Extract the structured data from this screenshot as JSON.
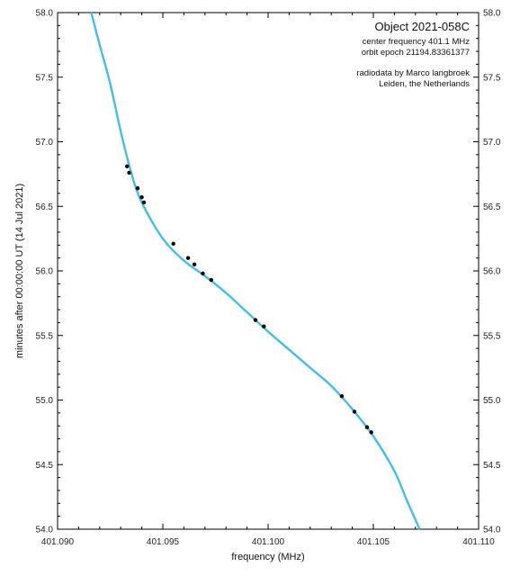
{
  "chart_data": {
    "type": "scatter",
    "title": "Object 2021-058C",
    "annotations": [
      "center frequency 401.1 MHz",
      "orbit epoch  21194.83361377",
      "radiodata by Marco langbroek",
      "Leiden, the Netherlands"
    ],
    "xlabel": "frequency (MHz)",
    "ylabel": "minutes after 00:00:00 UT (14 Jul 2021)",
    "xlim": [
      401.09,
      401.11
    ],
    "ylim": [
      54.0,
      58.0
    ],
    "x_ticks": [
      "401.090",
      "401.095",
      "401.100",
      "401.105",
      "401.110"
    ],
    "y_ticks": [
      "54.0",
      "54.5",
      "55.0",
      "55.5",
      "56.0",
      "56.5",
      "57.0",
      "57.5",
      "58.0"
    ],
    "grid": false,
    "series": [
      {
        "kind": "line",
        "color": "#3fbfea",
        "points": [
          [
            401.0916,
            58.0
          ],
          [
            401.092,
            57.75
          ],
          [
            401.0925,
            57.45
          ],
          [
            401.093,
            57.08
          ],
          [
            401.0935,
            56.76
          ],
          [
            401.094,
            56.53
          ],
          [
            401.095,
            56.25
          ],
          [
            401.096,
            56.08
          ],
          [
            401.097,
            55.96
          ],
          [
            401.098,
            55.83
          ],
          [
            401.099,
            55.68
          ],
          [
            401.1,
            55.53
          ],
          [
            401.101,
            55.39
          ],
          [
            401.102,
            55.25
          ],
          [
            401.103,
            55.11
          ],
          [
            401.104,
            54.93
          ],
          [
            401.105,
            54.72
          ],
          [
            401.106,
            54.45
          ],
          [
            401.1066,
            54.22
          ],
          [
            401.1072,
            54.0
          ]
        ]
      },
      {
        "kind": "points",
        "color": "#000000",
        "points": [
          [
            401.0933,
            56.81
          ],
          [
            401.0934,
            56.76
          ],
          [
            401.0938,
            56.64
          ],
          [
            401.094,
            56.57
          ],
          [
            401.0941,
            56.53
          ],
          [
            401.0955,
            56.21
          ],
          [
            401.0962,
            56.1
          ],
          [
            401.0965,
            56.05
          ],
          [
            401.0969,
            55.98
          ],
          [
            401.0973,
            55.93
          ],
          [
            401.0994,
            55.62
          ],
          [
            401.0998,
            55.57
          ],
          [
            401.1035,
            55.03
          ],
          [
            401.1041,
            54.91
          ],
          [
            401.1047,
            54.79
          ],
          [
            401.1049,
            54.75
          ]
        ]
      }
    ]
  }
}
